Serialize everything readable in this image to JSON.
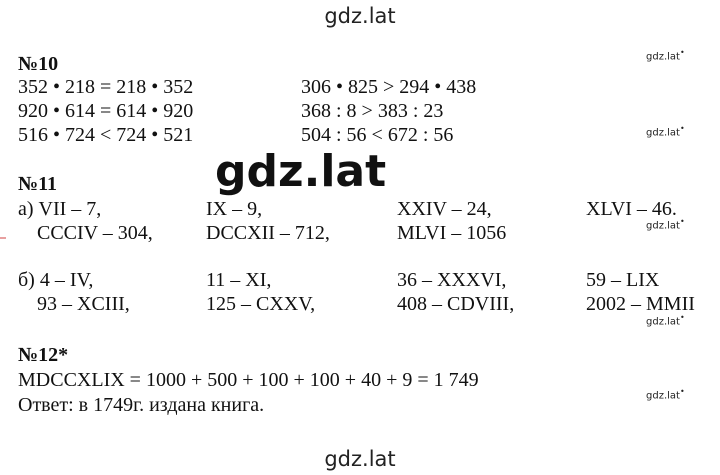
{
  "watermark": {
    "top": "gdz.lat",
    "bottom": "gdz.lat",
    "big": "gdz.lat",
    "small": "gdz.lat",
    "small_dot": "•"
  },
  "task10": {
    "title": "№10",
    "left": [
      "352 • 218 = 218 • 352",
      "920 • 614 = 614 •  920",
      "516 • 724 < 724 • 521"
    ],
    "right": [
      "306 • 825 > 294 • 438",
      "368 : 8 > 383 : 23",
      "504 : 56 < 672 : 56"
    ]
  },
  "task11": {
    "title": "№11",
    "a_row1": [
      "а) VII – 7,",
      "IX – 9,",
      "XXIV – 24,",
      "XLVI – 46."
    ],
    "a_row2": [
      "CCCIV – 304,",
      "DCCXII – 712,",
      "MLVI – 1056"
    ],
    "b_row1": [
      "б) 4 – IV,",
      "11 – XI,",
      "36 – XXXVI,",
      "59 – LIX"
    ],
    "b_row2": [
      "93 – XCIII,",
      "125 – CXXV,",
      "408 – CDVIII,",
      "2002 – MMII"
    ]
  },
  "task12": {
    "title": "№12*",
    "equation": "MDCCXLIX = 1000 + 500 + 100 + 100 + 40 + 9 = 1 749",
    "answer": "Ответ: в 1749г. издана книга."
  }
}
